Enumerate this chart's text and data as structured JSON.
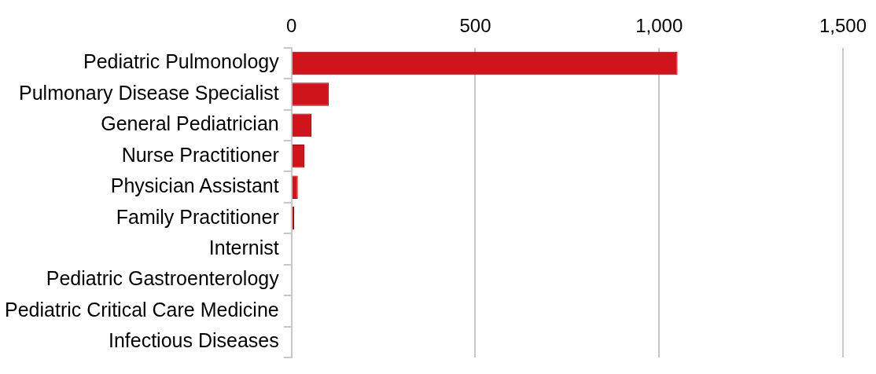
{
  "chart_data": {
    "type": "bar",
    "orientation": "horizontal",
    "categories": [
      "Pediatric Pulmonology",
      "Pulmonary Disease Specialist",
      "General Pediatrician",
      "Nurse Practitioner",
      "Physician Assistant",
      "Family Practitioner",
      "Internist",
      "Pediatric Gastroenterology",
      "Pediatric Critical Care Medicine",
      "Infectious Diseases"
    ],
    "values": [
      1050,
      101,
      54,
      35,
      17,
      7,
      null,
      null,
      null,
      0
    ],
    "color": "#d0141c",
    "xlim": [
      0,
      1500
    ],
    "xticks": [
      0,
      500,
      {
        "value": 1000,
        "label": "1,000"
      },
      {
        "value": 1500,
        "label": "1,500"
      }
    ],
    "grid": "x"
  }
}
